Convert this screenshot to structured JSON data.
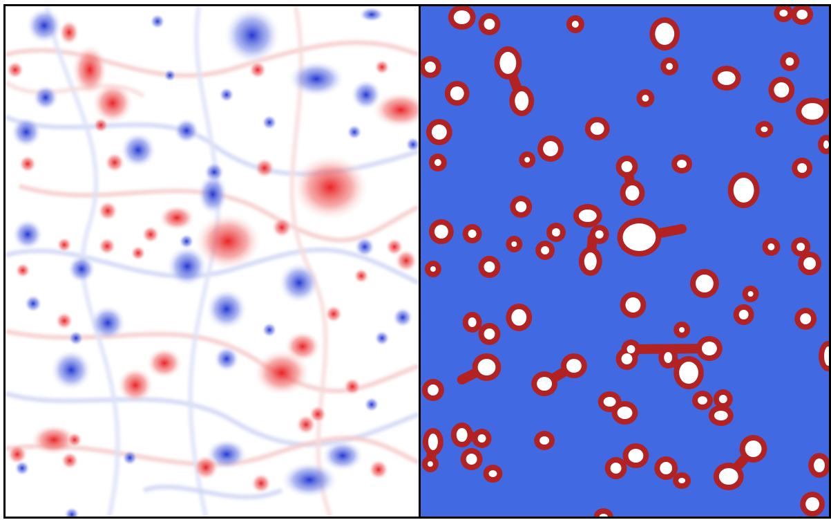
{
  "figure": {
    "panels": [
      {
        "id": "vorticity-field",
        "background": "#ffffff",
        "positive_color": "#e8191b",
        "negative_color": "#2236d6"
      },
      {
        "id": "vortex-mask",
        "background": "#4169e1",
        "edge_color": "#b22222",
        "core_color": "#ffffff"
      }
    ]
  }
}
